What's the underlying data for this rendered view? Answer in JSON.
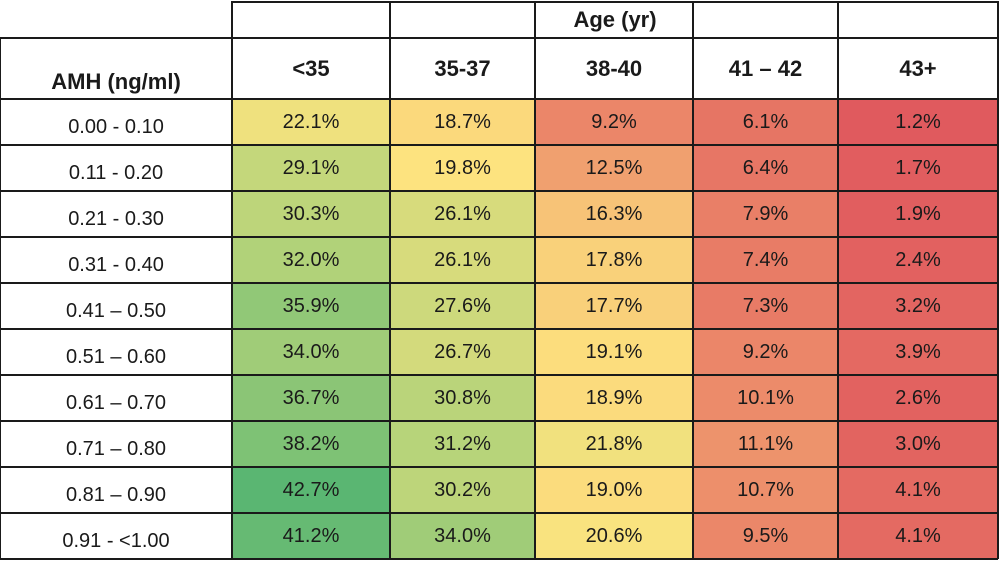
{
  "chart_data": {
    "type": "heatmap",
    "row_header": "AMH (ng/ml)",
    "column_group_header": "Age (yr)",
    "columns": [
      "<35",
      "35-37",
      "38-40",
      "41 – 42",
      "43+"
    ],
    "rows": [
      "0.00 - 0.10",
      "0.11 - 0.20",
      "0.21 - 0.30",
      "0.31 - 0.40",
      "0.41 – 0.50",
      "0.51 – 0.60",
      "0.61 – 0.70",
      "0.71 – 0.80",
      "0.81 – 0.90",
      "0.91 - <1.00"
    ],
    "values": [
      [
        "22.1%",
        "18.7%",
        "9.2%",
        "6.1%",
        "1.2%"
      ],
      [
        "29.1%",
        "19.8%",
        "12.5%",
        "6.4%",
        "1.7%"
      ],
      [
        "30.3%",
        "26.1%",
        "16.3%",
        "7.9%",
        "1.9%"
      ],
      [
        "32.0%",
        "26.1%",
        "17.8%",
        "7.4%",
        "2.4%"
      ],
      [
        "35.9%",
        "27.6%",
        "17.7%",
        "7.3%",
        "3.2%"
      ],
      [
        "34.0%",
        "26.7%",
        "19.1%",
        "9.2%",
        "3.9%"
      ],
      [
        "36.7%",
        "30.8%",
        "18.9%",
        "10.1%",
        "2.6%"
      ],
      [
        "38.2%",
        "31.2%",
        "21.8%",
        "11.1%",
        "3.0%"
      ],
      [
        "42.7%",
        "30.2%",
        "19.0%",
        "10.7%",
        "4.1%"
      ],
      [
        "41.2%",
        "34.0%",
        "20.6%",
        "9.5%",
        "4.1%"
      ]
    ],
    "color_scale": {
      "low": "#e05a5e",
      "mid_low": "#ec8c6a",
      "mid": "#fde47f",
      "mid_high": "#b8d47a",
      "high": "#5ab672"
    },
    "gridline_color": "#1a1a1a"
  }
}
